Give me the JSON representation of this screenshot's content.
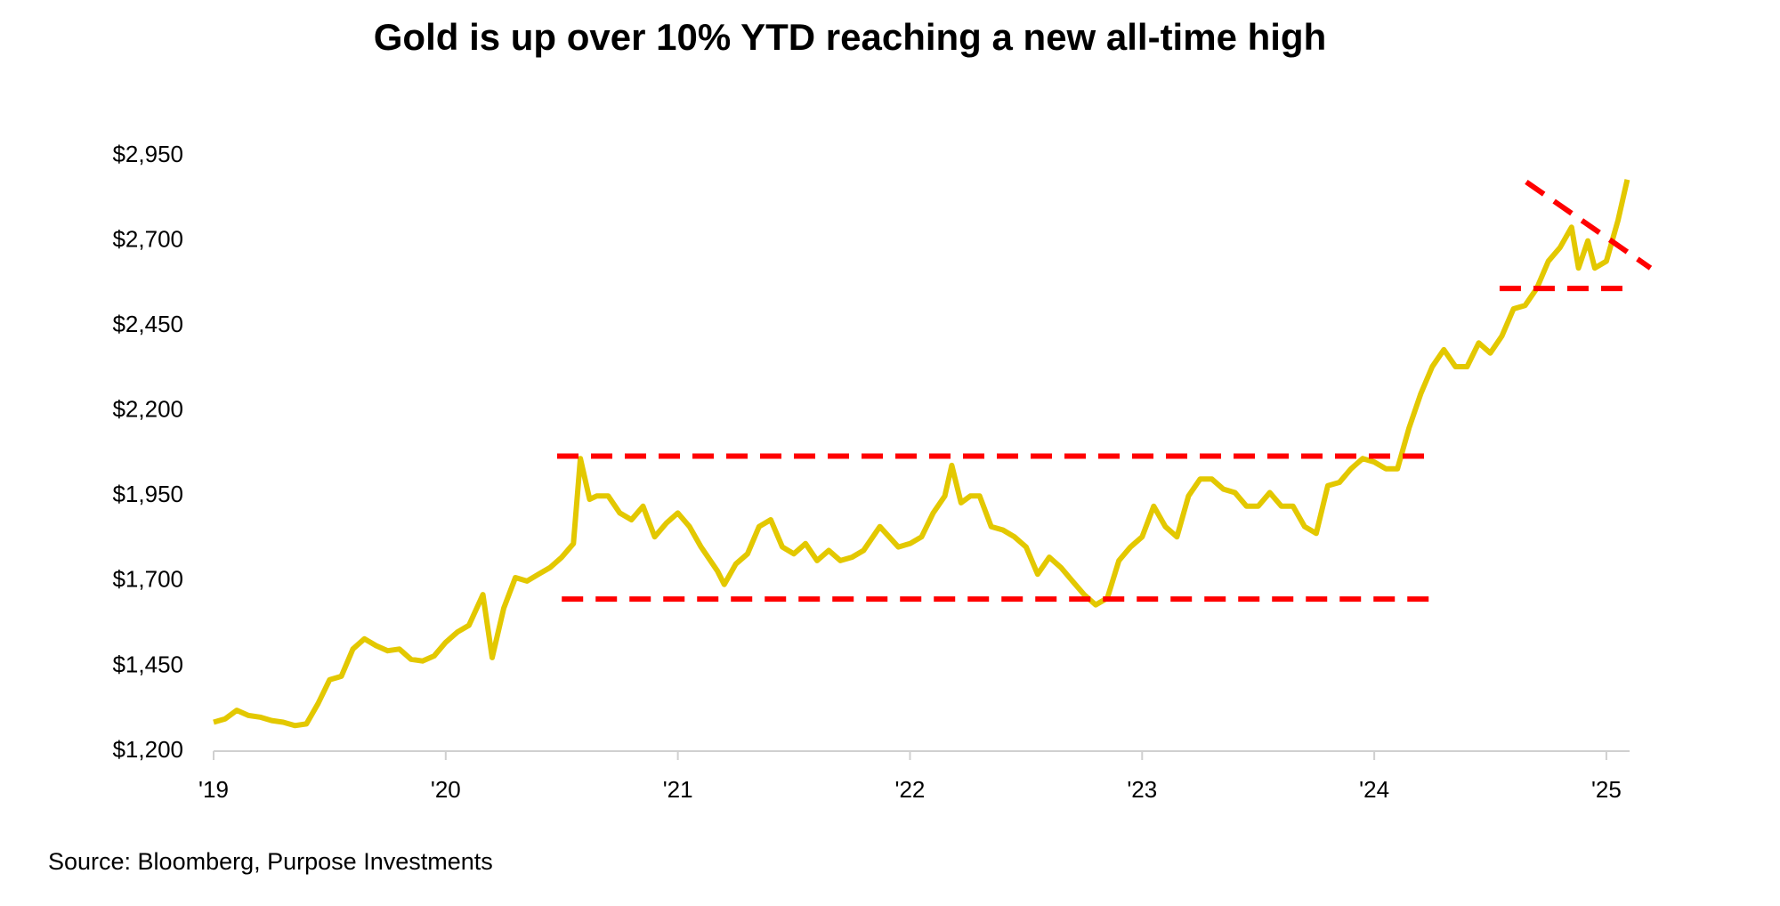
{
  "chart_data": {
    "type": "line",
    "title": "Gold is up over 10% YTD reaching a new all-time high",
    "source": "Source: Bloomberg, Purpose Investments",
    "color": "#e3c800",
    "x": [
      2019.0,
      2019.05,
      2019.1,
      2019.15,
      2019.2,
      2019.25,
      2019.3,
      2019.35,
      2019.4,
      2019.45,
      2019.5,
      2019.55,
      2019.6,
      2019.65,
      2019.7,
      2019.75,
      2019.8,
      2019.85,
      2019.9,
      2019.95,
      2020.0,
      2020.05,
      2020.1,
      2020.16,
      2020.2,
      2020.25,
      2020.3,
      2020.35,
      2020.4,
      2020.45,
      2020.5,
      2020.55,
      2020.58,
      2020.62,
      2020.65,
      2020.7,
      2020.75,
      2020.8,
      2020.85,
      2020.9,
      2020.95,
      2021.0,
      2021.05,
      2021.1,
      2021.17,
      2021.2,
      2021.25,
      2021.3,
      2021.35,
      2021.4,
      2021.45,
      2021.5,
      2021.55,
      2021.6,
      2021.65,
      2021.7,
      2021.75,
      2021.8,
      2021.87,
      2021.95,
      2022.0,
      2022.05,
      2022.1,
      2022.15,
      2022.18,
      2022.22,
      2022.26,
      2022.3,
      2022.35,
      2022.4,
      2022.45,
      2022.5,
      2022.55,
      2022.6,
      2022.65,
      2022.7,
      2022.75,
      2022.8,
      2022.85,
      2022.9,
      2022.95,
      2023.0,
      2023.05,
      2023.1,
      2023.15,
      2023.2,
      2023.25,
      2023.3,
      2023.35,
      2023.4,
      2023.45,
      2023.5,
      2023.55,
      2023.6,
      2023.65,
      2023.7,
      2023.75,
      2023.8,
      2023.85,
      2023.9,
      2023.95,
      2024.0,
      2024.05,
      2024.1,
      2024.15,
      2024.2,
      2024.25,
      2024.3,
      2024.35,
      2024.4,
      2024.45,
      2024.5,
      2024.55,
      2024.6,
      2024.65,
      2024.7,
      2024.75,
      2024.8,
      2024.85,
      2024.88,
      2024.92,
      2024.95,
      2025.0,
      2025.05,
      2025.09
    ],
    "values": [
      1285,
      1295,
      1320,
      1305,
      1300,
      1290,
      1285,
      1275,
      1280,
      1340,
      1410,
      1420,
      1500,
      1530,
      1510,
      1495,
      1500,
      1470,
      1465,
      1480,
      1520,
      1550,
      1570,
      1660,
      1475,
      1620,
      1710,
      1700,
      1720,
      1740,
      1770,
      1810,
      2060,
      1940,
      1950,
      1950,
      1900,
      1880,
      1920,
      1830,
      1870,
      1900,
      1860,
      1800,
      1730,
      1690,
      1750,
      1780,
      1860,
      1880,
      1800,
      1780,
      1810,
      1760,
      1790,
      1760,
      1770,
      1790,
      1860,
      1800,
      1810,
      1830,
      1900,
      1950,
      2040,
      1930,
      1950,
      1950,
      1860,
      1850,
      1830,
      1800,
      1720,
      1770,
      1740,
      1700,
      1660,
      1630,
      1650,
      1760,
      1800,
      1830,
      1920,
      1860,
      1830,
      1950,
      2000,
      2000,
      1970,
      1960,
      1920,
      1920,
      1960,
      1920,
      1920,
      1860,
      1840,
      1980,
      1990,
      2030,
      2060,
      2050,
      2030,
      2030,
      2150,
      2250,
      2330,
      2380,
      2330,
      2330,
      2400,
      2370,
      2420,
      2500,
      2510,
      2560,
      2640,
      2680,
      2740,
      2620,
      2700,
      2620,
      2640,
      2760,
      2880
    ],
    "reference_lines": [
      {
        "x": [
          2020.48,
          2024.25
        ],
        "y": [
          2067,
          2067
        ]
      },
      {
        "x": [
          2020.5,
          2024.28
        ],
        "y": [
          1647,
          1647
        ]
      },
      {
        "x": [
          2024.54,
          2025.07
        ],
        "y": [
          2560,
          2560
        ]
      },
      {
        "x": [
          2024.655,
          2025.19
        ],
        "y": [
          2873,
          2620
        ]
      }
    ],
    "reference_color": "#ff0000",
    "xlim": [
      2019,
      2025.1
    ],
    "xticks": [
      {
        "value": 2019,
        "label": "'19"
      },
      {
        "value": 2020,
        "label": "'20"
      },
      {
        "value": 2021,
        "label": "'21"
      },
      {
        "value": 2022,
        "label": "'22"
      },
      {
        "value": 2023,
        "label": "'23"
      },
      {
        "value": 2024,
        "label": "'24"
      },
      {
        "value": 2025,
        "label": "'25"
      }
    ],
    "ylim": [
      1200,
      2950
    ],
    "yticks": [
      {
        "value": 1200,
        "label": "$1,200"
      },
      {
        "value": 1450,
        "label": "$1,450"
      },
      {
        "value": 1700,
        "label": "$1,700"
      },
      {
        "value": 1950,
        "label": "$1,950"
      },
      {
        "value": 2200,
        "label": "$2,200"
      },
      {
        "value": 2450,
        "label": "$2,450"
      },
      {
        "value": 2700,
        "label": "$2,700"
      },
      {
        "value": 2950,
        "label": "$2,950"
      }
    ]
  }
}
